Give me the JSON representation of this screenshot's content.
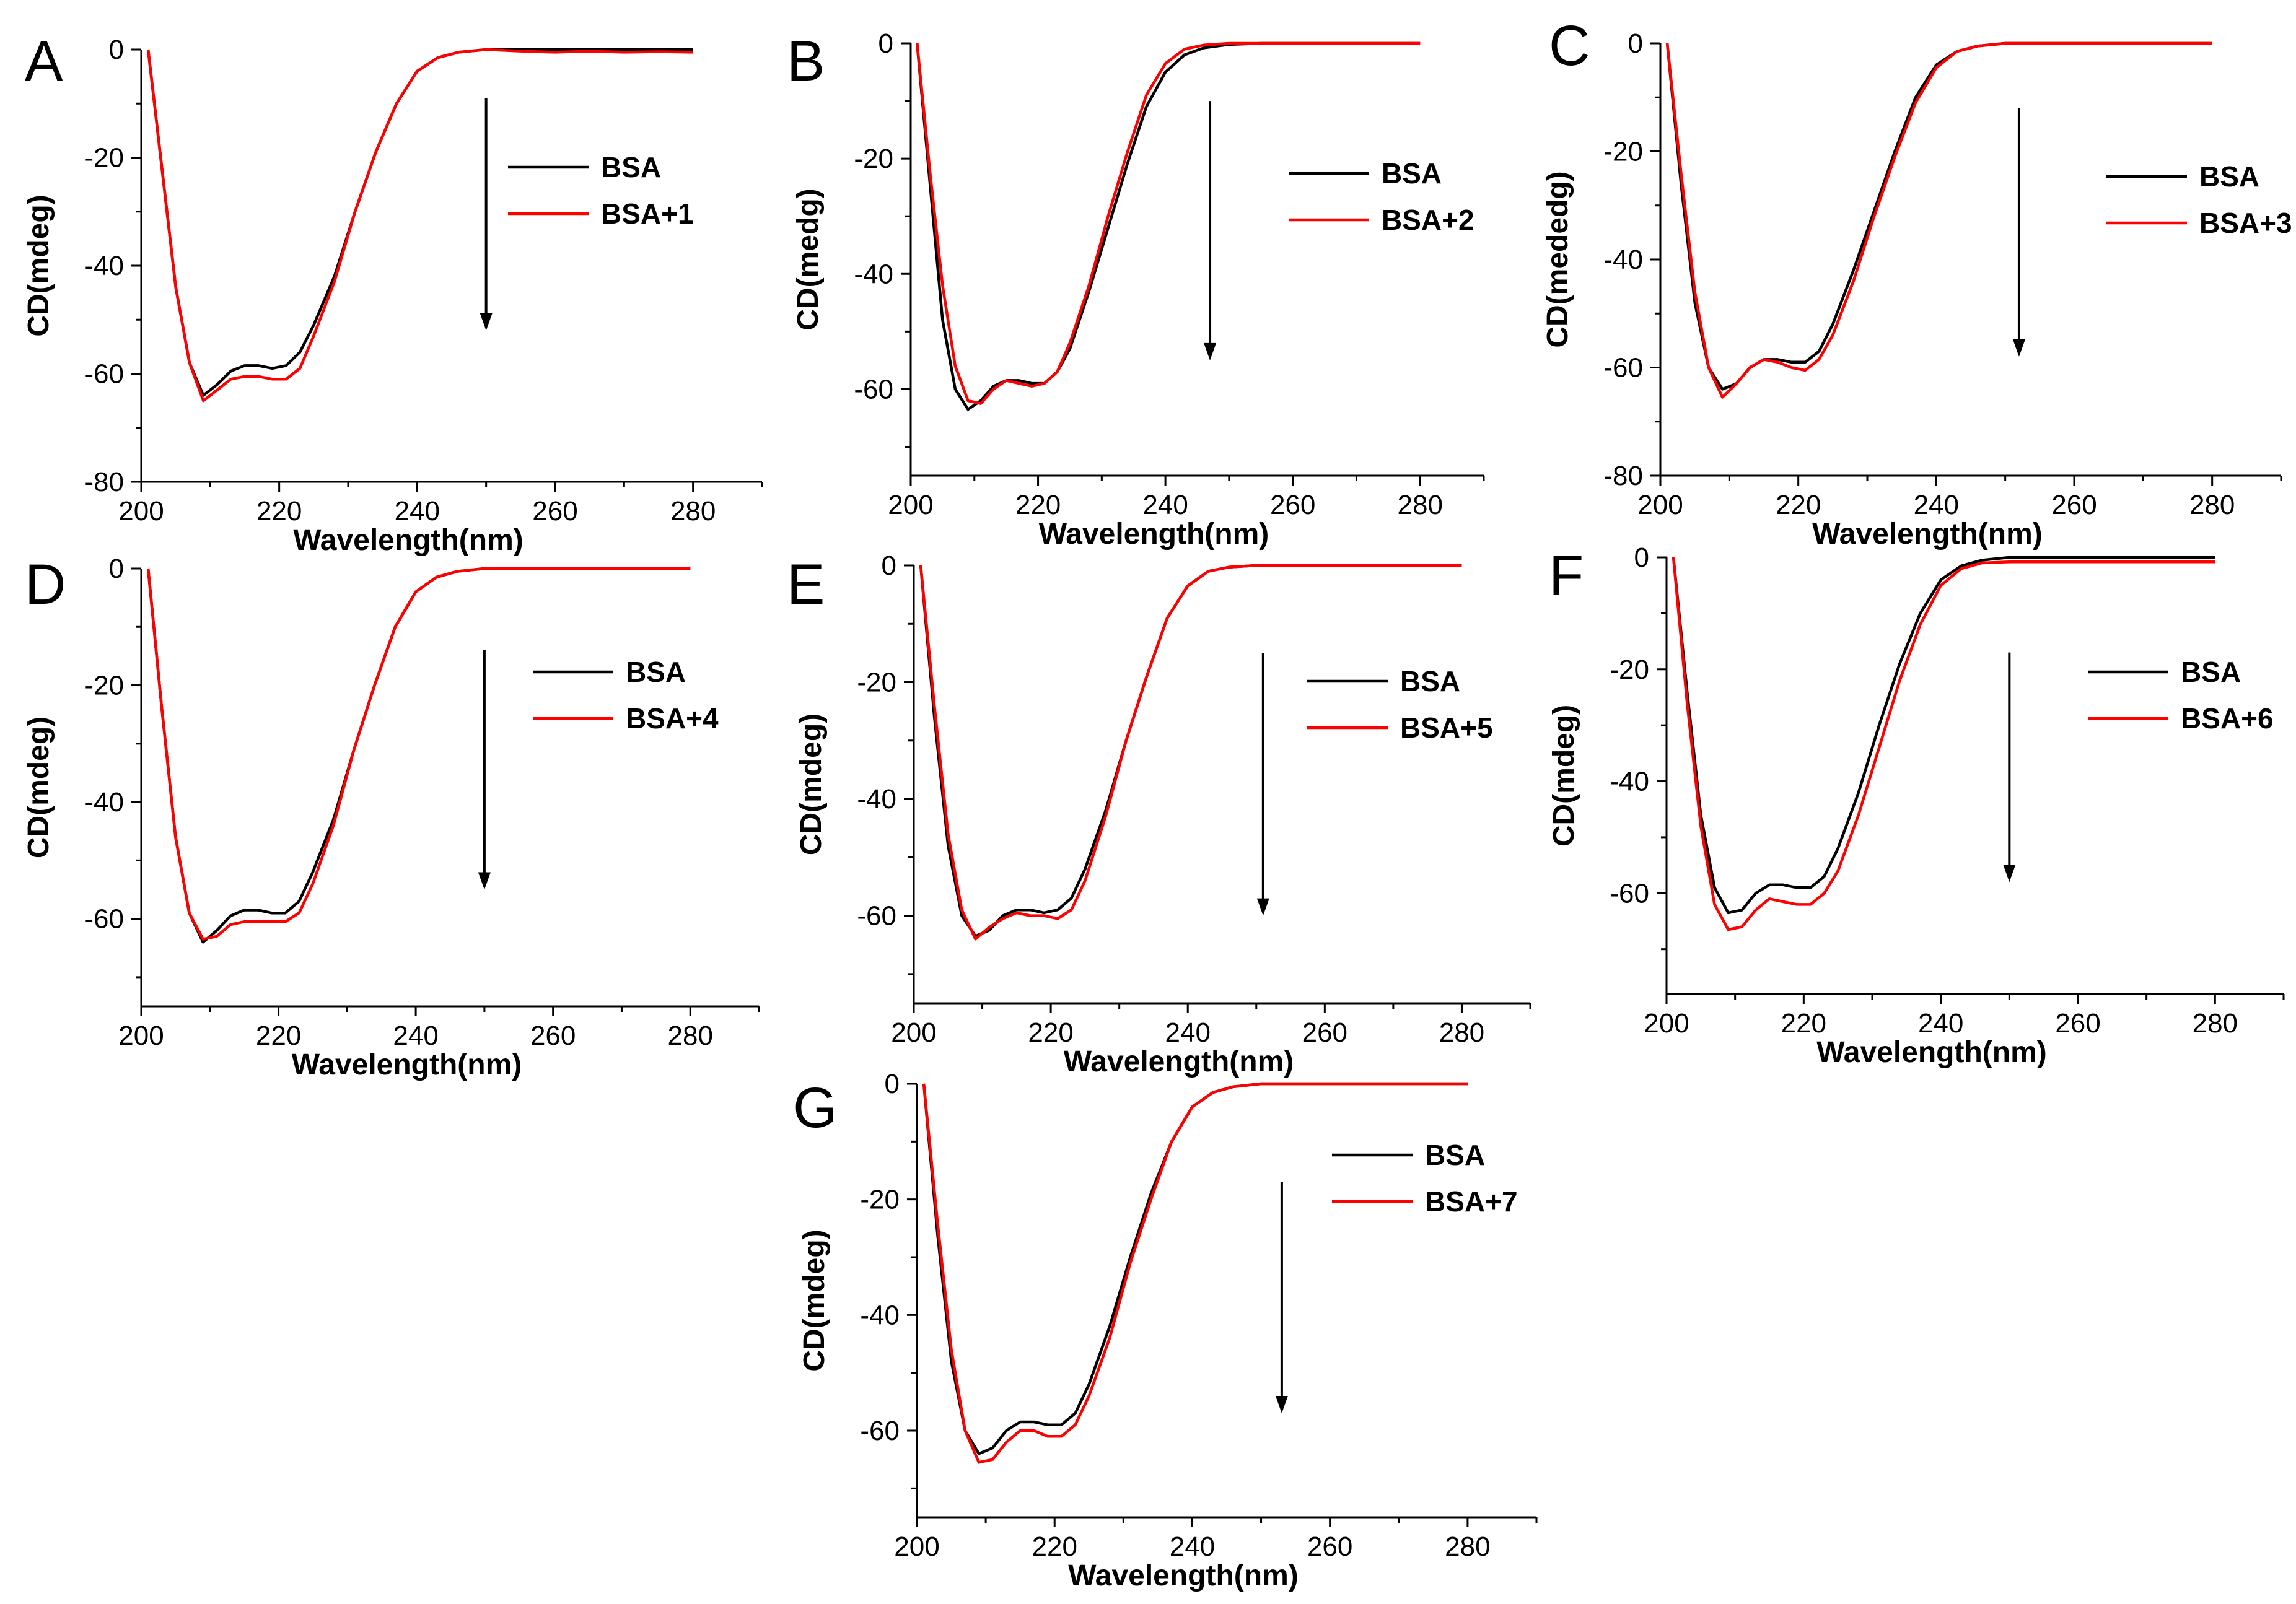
{
  "figure_description_title": "",
  "colors": {
    "reference": "#000000",
    "complex": "#ff0000",
    "axis": "#000000"
  },
  "chart_data": [
    {
      "type": "line",
      "panel": "A",
      "xlabel": "Wavelength(nm)",
      "ylabel": "CD(mdeg)",
      "xlim": [
        200,
        290
      ],
      "ylim": [
        -80,
        0
      ],
      "xticks": [
        200,
        220,
        240,
        260,
        280
      ],
      "yticks": [
        0,
        -20,
        -40,
        -60,
        -80
      ],
      "legend": [
        "BSA",
        "BSA+1"
      ],
      "arrow": {
        "x": 250,
        "y_from": -9,
        "y_to": -52
      },
      "series": [
        {
          "name": "BSA",
          "color": "#000000",
          "x": [
            201,
            203,
            205,
            207,
            209,
            211,
            213,
            215,
            217,
            219,
            221,
            223,
            225,
            228,
            231,
            234,
            237,
            240,
            243,
            246,
            250,
            255,
            260,
            265,
            270,
            275,
            280
          ],
          "y": [
            0,
            -22,
            -44,
            -58,
            -64,
            -62,
            -59.5,
            -58.5,
            -58.5,
            -59,
            -58.5,
            -56,
            -51,
            -42,
            -30,
            -19,
            -10,
            -4,
            -1.5,
            -0.5,
            0,
            0,
            0,
            0,
            0,
            0,
            0
          ]
        },
        {
          "name": "BSA+1",
          "color": "#ff0000",
          "x": [
            201,
            203,
            205,
            207,
            209,
            211,
            213,
            215,
            217,
            219,
            221,
            223,
            225,
            228,
            231,
            234,
            237,
            240,
            243,
            246,
            250,
            255,
            260,
            265,
            270,
            275,
            280
          ],
          "y": [
            0,
            -22,
            -44,
            -58,
            -65,
            -63,
            -61,
            -60.5,
            -60.5,
            -61,
            -61,
            -59,
            -53,
            -43,
            -30,
            -19,
            -10,
            -4,
            -1.5,
            -0.5,
            0,
            -0.3,
            -0.5,
            -0.3,
            -0.5,
            -0.4,
            -0.5
          ]
        }
      ]
    },
    {
      "type": "line",
      "panel": "B",
      "xlabel": "Wavelength(nm)",
      "ylabel": "CD(medg)",
      "xlim": [
        200,
        290
      ],
      "ylim": [
        -75,
        0
      ],
      "xticks": [
        200,
        220,
        240,
        260,
        280
      ],
      "yticks": [
        0,
        -20,
        -40,
        -60
      ],
      "legend": [
        "BSA",
        "BSA+2"
      ],
      "arrow": {
        "x": 247,
        "y_from": -10,
        "y_to": -55
      },
      "series": [
        {
          "name": "BSA",
          "color": "#000000",
          "x": [
            201,
            203,
            205,
            207,
            209,
            211,
            213,
            215,
            217,
            219,
            221,
            223,
            225,
            228,
            231,
            234,
            237,
            240,
            243,
            246,
            250,
            255,
            260,
            265,
            270,
            275,
            280
          ],
          "y": [
            0,
            -24,
            -48,
            -60,
            -63.5,
            -62,
            -59.5,
            -58.5,
            -58.5,
            -59,
            -59,
            -57,
            -53,
            -43,
            -32,
            -21,
            -11,
            -5,
            -2,
            -0.8,
            -0.2,
            0,
            0,
            0,
            0,
            0,
            0
          ]
        },
        {
          "name": "BSA+2",
          "color": "#ff0000",
          "x": [
            201,
            203,
            205,
            207,
            209,
            211,
            213,
            215,
            217,
            219,
            221,
            223,
            225,
            228,
            231,
            234,
            237,
            240,
            243,
            246,
            250,
            255,
            260,
            265,
            270,
            275,
            280
          ],
          "y": [
            0,
            -22,
            -42,
            -56,
            -62,
            -62.5,
            -60,
            -58.5,
            -59,
            -59.5,
            -59,
            -57,
            -52,
            -42,
            -30,
            -19,
            -9,
            -3.5,
            -1,
            -0.3,
            0,
            0,
            0,
            0,
            0,
            0,
            0
          ]
        }
      ]
    },
    {
      "type": "line",
      "panel": "C",
      "xlabel": "Wavelength(nm)",
      "ylabel": "CD(mededg)",
      "xlim": [
        200,
        290
      ],
      "ylim": [
        -80,
        0
      ],
      "xticks": [
        200,
        220,
        240,
        260,
        280
      ],
      "yticks": [
        0,
        -20,
        -40,
        -60,
        -80
      ],
      "legend": [
        "BSA",
        "BSA+3"
      ],
      "arrow": {
        "x": 252,
        "y_from": -12,
        "y_to": -58
      },
      "series": [
        {
          "name": "BSA",
          "color": "#000000",
          "x": [
            201,
            203,
            205,
            207,
            209,
            211,
            213,
            215,
            217,
            219,
            221,
            223,
            225,
            228,
            231,
            234,
            237,
            240,
            243,
            246,
            250,
            255,
            260,
            265,
            270,
            275,
            280
          ],
          "y": [
            0,
            -26,
            -48,
            -60,
            -64,
            -63,
            -60,
            -58.5,
            -58.5,
            -59,
            -59,
            -57,
            -52,
            -42,
            -31,
            -20,
            -10,
            -4,
            -1.5,
            -0.5,
            0,
            0,
            0,
            0,
            0,
            0,
            0
          ]
        },
        {
          "name": "BSA+3",
          "color": "#ff0000",
          "x": [
            201,
            203,
            205,
            207,
            209,
            211,
            213,
            215,
            217,
            219,
            221,
            223,
            225,
            228,
            231,
            234,
            237,
            240,
            243,
            246,
            250,
            255,
            260,
            265,
            270,
            275,
            280
          ],
          "y": [
            0,
            -24,
            -46,
            -60,
            -65.5,
            -63,
            -60,
            -58.5,
            -59,
            -60,
            -60.5,
            -58.5,
            -54,
            -44,
            -32,
            -21,
            -11,
            -4.5,
            -1.5,
            -0.5,
            0,
            0,
            0,
            0,
            0,
            0,
            0
          ]
        }
      ]
    },
    {
      "type": "line",
      "panel": "D",
      "xlabel": "Wavelength(nm)",
      "ylabel": "CD(mdeg)",
      "xlim": [
        200,
        290
      ],
      "ylim": [
        -75,
        0
      ],
      "xticks": [
        200,
        220,
        240,
        260,
        280
      ],
      "yticks": [
        0,
        -20,
        -40,
        -60
      ],
      "legend": [
        "BSA",
        "BSA+4"
      ],
      "arrow": {
        "x": 250,
        "y_from": -14,
        "y_to": -55
      },
      "series": [
        {
          "name": "BSA",
          "color": "#000000",
          "x": [
            201,
            203,
            205,
            207,
            209,
            211,
            213,
            215,
            217,
            219,
            221,
            223,
            225,
            228,
            231,
            234,
            237,
            240,
            243,
            246,
            250,
            255,
            260,
            265,
            270,
            275,
            280
          ],
          "y": [
            0,
            -24,
            -46,
            -59,
            -64,
            -62,
            -59.5,
            -58.5,
            -58.5,
            -59,
            -59,
            -57,
            -52,
            -43,
            -31,
            -20,
            -10,
            -4,
            -1.5,
            -0.5,
            0,
            0,
            0,
            0,
            0,
            0,
            0
          ]
        },
        {
          "name": "BSA+4",
          "color": "#ff0000",
          "x": [
            201,
            203,
            205,
            207,
            209,
            211,
            213,
            215,
            217,
            219,
            221,
            223,
            225,
            228,
            231,
            234,
            237,
            240,
            243,
            246,
            250,
            255,
            260,
            265,
            270,
            275,
            280
          ],
          "y": [
            0,
            -24,
            -46,
            -59,
            -63.5,
            -63,
            -61,
            -60.5,
            -60.5,
            -60.5,
            -60.5,
            -59,
            -54,
            -44,
            -31,
            -20,
            -10,
            -4,
            -1.5,
            -0.5,
            0,
            0,
            0,
            0,
            0,
            0,
            0
          ]
        }
      ]
    },
    {
      "type": "line",
      "panel": "E",
      "xlabel": "Wavelength(nm)",
      "ylabel": "CD(mdeg)",
      "xlim": [
        200,
        290
      ],
      "ylim": [
        -75,
        0
      ],
      "xticks": [
        200,
        220,
        240,
        260,
        280
      ],
      "yticks": [
        0,
        -20,
        -40,
        -60
      ],
      "legend": [
        "BSA",
        "BSA+5"
      ],
      "arrow": {
        "x": 251,
        "y_from": -15,
        "y_to": -60
      },
      "series": [
        {
          "name": "BSA",
          "color": "#000000",
          "x": [
            201,
            203,
            205,
            207,
            209,
            211,
            213,
            215,
            217,
            219,
            221,
            223,
            225,
            228,
            231,
            234,
            237,
            240,
            243,
            246,
            250,
            255,
            260,
            265,
            270,
            275,
            280
          ],
          "y": [
            0,
            -26,
            -48,
            -60,
            -63.5,
            -62.5,
            -60,
            -59,
            -59,
            -59.5,
            -59,
            -57,
            -52,
            -42,
            -30,
            -19,
            -9,
            -3.5,
            -1,
            -0.3,
            0,
            0,
            0,
            0,
            0,
            0,
            0
          ]
        },
        {
          "name": "BSA+5",
          "color": "#ff0000",
          "x": [
            201,
            203,
            205,
            207,
            209,
            211,
            213,
            215,
            217,
            219,
            221,
            223,
            225,
            228,
            231,
            234,
            237,
            240,
            243,
            246,
            250,
            255,
            260,
            265,
            270,
            275,
            280
          ],
          "y": [
            0,
            -24,
            -46,
            -59,
            -64,
            -62,
            -60.5,
            -59.5,
            -60,
            -60,
            -60.5,
            -59,
            -54,
            -43,
            -30,
            -19,
            -9,
            -3.5,
            -1,
            -0.3,
            0,
            0,
            0,
            0,
            0,
            0,
            0
          ]
        }
      ]
    },
    {
      "type": "line",
      "panel": "F",
      "xlabel": "Wavelength(nm)",
      "ylabel": "CD(mdeg)",
      "xlim": [
        200,
        290
      ],
      "ylim": [
        -78,
        0
      ],
      "xticks": [
        200,
        220,
        240,
        260,
        280
      ],
      "yticks": [
        0,
        -20,
        -40,
        -60
      ],
      "legend": [
        "BSA",
        "BSA+6"
      ],
      "arrow": {
        "x": 250,
        "y_from": -17,
        "y_to": -58
      },
      "series": [
        {
          "name": "BSA",
          "color": "#000000",
          "x": [
            201,
            203,
            205,
            207,
            209,
            211,
            213,
            215,
            217,
            219,
            221,
            223,
            225,
            228,
            231,
            234,
            237,
            240,
            243,
            246,
            250,
            255,
            260,
            265,
            270,
            275,
            280
          ],
          "y": [
            0,
            -24,
            -46,
            -59,
            -63.5,
            -63,
            -60,
            -58.5,
            -58.5,
            -59,
            -59,
            -57,
            -52,
            -42,
            -30,
            -19,
            -10,
            -4,
            -1.5,
            -0.5,
            0,
            0,
            0,
            0,
            0,
            0,
            0
          ]
        },
        {
          "name": "BSA+6",
          "color": "#ff0000",
          "x": [
            201,
            203,
            205,
            207,
            209,
            211,
            213,
            215,
            217,
            219,
            221,
            223,
            225,
            228,
            231,
            234,
            237,
            240,
            243,
            246,
            250,
            255,
            260,
            265,
            270,
            275,
            280
          ],
          "y": [
            0,
            -26,
            -48,
            -62,
            -66.5,
            -66,
            -63,
            -61,
            -61.5,
            -62,
            -62,
            -60,
            -56,
            -46,
            -34,
            -22,
            -12,
            -5,
            -2,
            -1,
            -0.8,
            -0.8,
            -0.8,
            -0.8,
            -0.8,
            -0.8,
            -0.8
          ]
        }
      ]
    },
    {
      "type": "line",
      "panel": "G",
      "xlabel": "Wavelength(nm)",
      "ylabel": "CD(mdeg)",
      "xlim": [
        200,
        290
      ],
      "ylim": [
        -75,
        0
      ],
      "xticks": [
        200,
        220,
        240,
        260,
        280
      ],
      "yticks": [
        0,
        -20,
        -40,
        -60
      ],
      "legend": [
        "BSA",
        "BSA+7"
      ],
      "arrow": {
        "x": 253,
        "y_from": -17,
        "y_to": -57
      },
      "series": [
        {
          "name": "BSA",
          "color": "#000000",
          "x": [
            201,
            203,
            205,
            207,
            209,
            211,
            213,
            215,
            217,
            219,
            221,
            223,
            225,
            228,
            231,
            234,
            237,
            240,
            243,
            246,
            250,
            255,
            260,
            265,
            270,
            275,
            280
          ],
          "y": [
            0,
            -26,
            -48,
            -60,
            -64,
            -63,
            -60,
            -58.5,
            -58.5,
            -59,
            -59,
            -57,
            -52,
            -42,
            -30,
            -19,
            -10,
            -4,
            -1.5,
            -0.5,
            0,
            0,
            0,
            0,
            0,
            0,
            0
          ]
        },
        {
          "name": "BSA+7",
          "color": "#ff0000",
          "x": [
            201,
            203,
            205,
            207,
            209,
            211,
            213,
            215,
            217,
            219,
            221,
            223,
            225,
            228,
            231,
            234,
            237,
            240,
            243,
            246,
            250,
            255,
            260,
            265,
            270,
            275,
            280
          ],
          "y": [
            0,
            -24,
            -46,
            -60,
            -65.5,
            -65,
            -62,
            -60,
            -60,
            -61,
            -61,
            -59,
            -54,
            -44,
            -31,
            -20,
            -10,
            -4,
            -1.5,
            -0.5,
            0,
            0,
            0,
            0,
            0,
            0,
            0
          ]
        }
      ]
    }
  ]
}
